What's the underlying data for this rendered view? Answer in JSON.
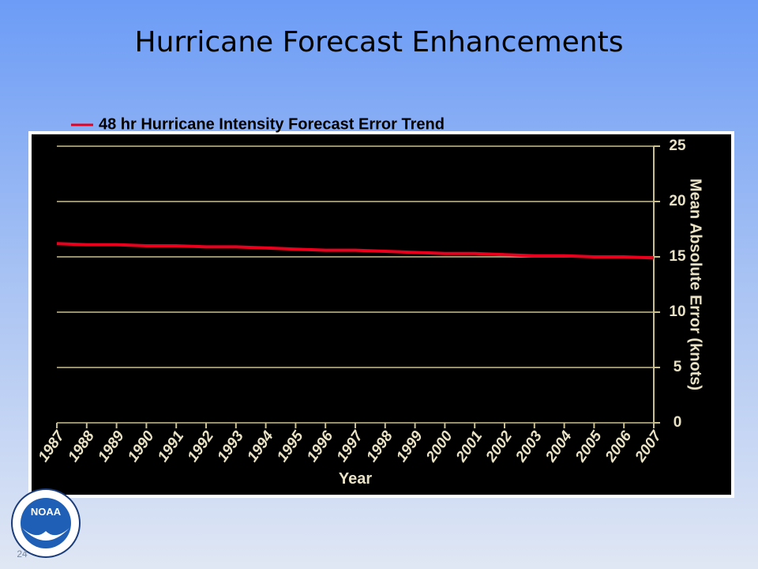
{
  "title": "Hurricane Forecast Enhancements",
  "slide_number": "24",
  "logo_text": "NOAA",
  "chart_data": {
    "type": "line",
    "categories": [
      "1987",
      "1988",
      "1989",
      "1990",
      "1991",
      "1992",
      "1993",
      "1994",
      "1995",
      "1996",
      "1997",
      "1998",
      "1999",
      "2000",
      "2001",
      "2002",
      "2003",
      "2004",
      "2005",
      "2006",
      "2007"
    ],
    "series": [
      {
        "name": "48 hr Hurricane Intensity Forecast Error Trend",
        "color": "#e8001c",
        "values": [
          16.2,
          16.1,
          16.1,
          16.0,
          16.0,
          15.9,
          15.9,
          15.8,
          15.7,
          15.6,
          15.6,
          15.5,
          15.4,
          15.3,
          15.3,
          15.2,
          15.1,
          15.1,
          15.0,
          15.0,
          14.9
        ]
      }
    ],
    "ylim": [
      0,
      25
    ],
    "yticks": [
      0,
      5,
      10,
      15,
      20,
      25
    ],
    "xlabel": "Year",
    "ylabel": "Mean Absolute Error (knots)",
    "grid": true,
    "y_axis_side": "right"
  }
}
